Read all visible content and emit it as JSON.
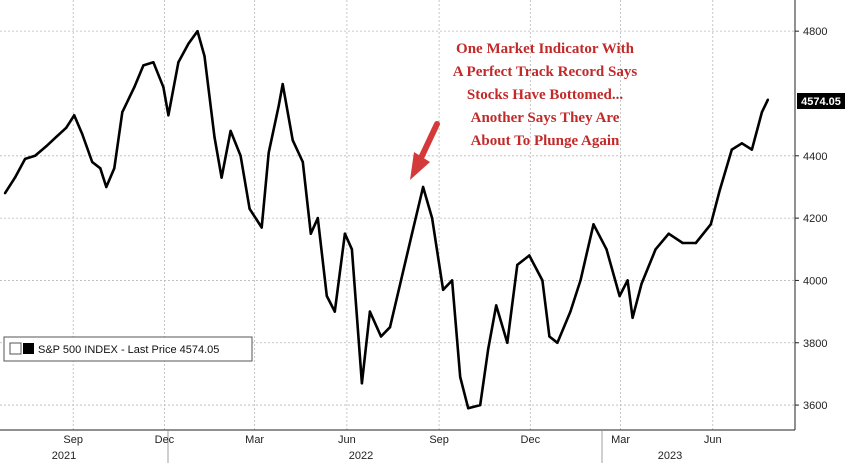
{
  "chart_data": {
    "type": "line",
    "title": "",
    "xlabel": "",
    "ylabel": "",
    "ylim": [
      3520,
      4900
    ],
    "grid": true,
    "legend": "bottom-left",
    "y_ticks": [
      3600,
      3800,
      4000,
      4200,
      4400,
      4800
    ],
    "x_ticks": [
      "Sep",
      "Dec",
      "Mar",
      "Jun",
      "Sep",
      "Dec",
      "Mar",
      "Jun"
    ],
    "year_labels": [
      "2021",
      "2022",
      "2023"
    ],
    "series": [
      {
        "name": "S&P 500 INDEX - Last Price",
        "color": "#000000",
        "last_value_label": "4574.05",
        "x": [
          "2021-06-25",
          "2021-07-05",
          "2021-07-15",
          "2021-07-25",
          "2021-08-05",
          "2021-08-15",
          "2021-08-25",
          "2021-09-02",
          "2021-09-10",
          "2021-09-20",
          "2021-09-28",
          "2021-10-04",
          "2021-10-12",
          "2021-10-20",
          "2021-11-01",
          "2021-11-10",
          "2021-11-20",
          "2021-11-30",
          "2021-12-05",
          "2021-12-15",
          "2021-12-25",
          "2022-01-03",
          "2022-01-10",
          "2022-01-20",
          "2022-01-27",
          "2022-02-05",
          "2022-02-15",
          "2022-02-24",
          "2022-03-08",
          "2022-03-15",
          "2022-03-25",
          "2022-03-29",
          "2022-04-08",
          "2022-04-18",
          "2022-04-26",
          "2022-05-03",
          "2022-05-12",
          "2022-05-20",
          "2022-05-30",
          "2022-06-06",
          "2022-06-16",
          "2022-06-24",
          "2022-07-05",
          "2022-07-14",
          "2022-07-25",
          "2022-08-05",
          "2022-08-16",
          "2022-08-25",
          "2022-09-05",
          "2022-09-14",
          "2022-09-22",
          "2022-09-30",
          "2022-10-12",
          "2022-10-20",
          "2022-10-28",
          "2022-11-08",
          "2022-11-18",
          "2022-11-30",
          "2022-12-13",
          "2022-12-20",
          "2022-12-28",
          "2023-01-10",
          "2023-01-20",
          "2023-02-02",
          "2023-02-15",
          "2023-02-28",
          "2023-03-08",
          "2023-03-13",
          "2023-03-22",
          "2023-04-05",
          "2023-04-18",
          "2023-05-02",
          "2023-05-15",
          "2023-05-30",
          "2023-06-08",
          "2023-06-20",
          "2023-06-30",
          "2023-07-10",
          "2023-07-20",
          "2023-07-26"
        ],
        "values": [
          4280,
          4330,
          4390,
          4400,
          4430,
          4460,
          4490,
          4530,
          4470,
          4380,
          4360,
          4300,
          4360,
          4540,
          4620,
          4690,
          4700,
          4620,
          4530,
          4700,
          4760,
          4800,
          4720,
          4460,
          4330,
          4480,
          4400,
          4230,
          4170,
          4410,
          4560,
          4630,
          4450,
          4380,
          4150,
          4200,
          3950,
          3900,
          4150,
          4100,
          3670,
          3900,
          3820,
          3850,
          4000,
          4150,
          4300,
          4200,
          3970,
          4000,
          3690,
          3590,
          3600,
          3780,
          3920,
          3800,
          4050,
          4080,
          4000,
          3820,
          3800,
          3900,
          4000,
          4180,
          4100,
          3950,
          4000,
          3880,
          3990,
          4100,
          4150,
          4120,
          4120,
          4180,
          4290,
          4420,
          4440,
          4420,
          4540,
          4580
        ]
      }
    ]
  },
  "annotation": {
    "lines": [
      "One Market Indicator With",
      "A Perfect Track Record Says",
      "Stocks Have Bottomed...",
      "Another Says They Are",
      "About To Plunge Again"
    ],
    "color": "#c22a2a"
  },
  "legend": {
    "label": "S&P 500 INDEX - Last Price 4574.05"
  }
}
